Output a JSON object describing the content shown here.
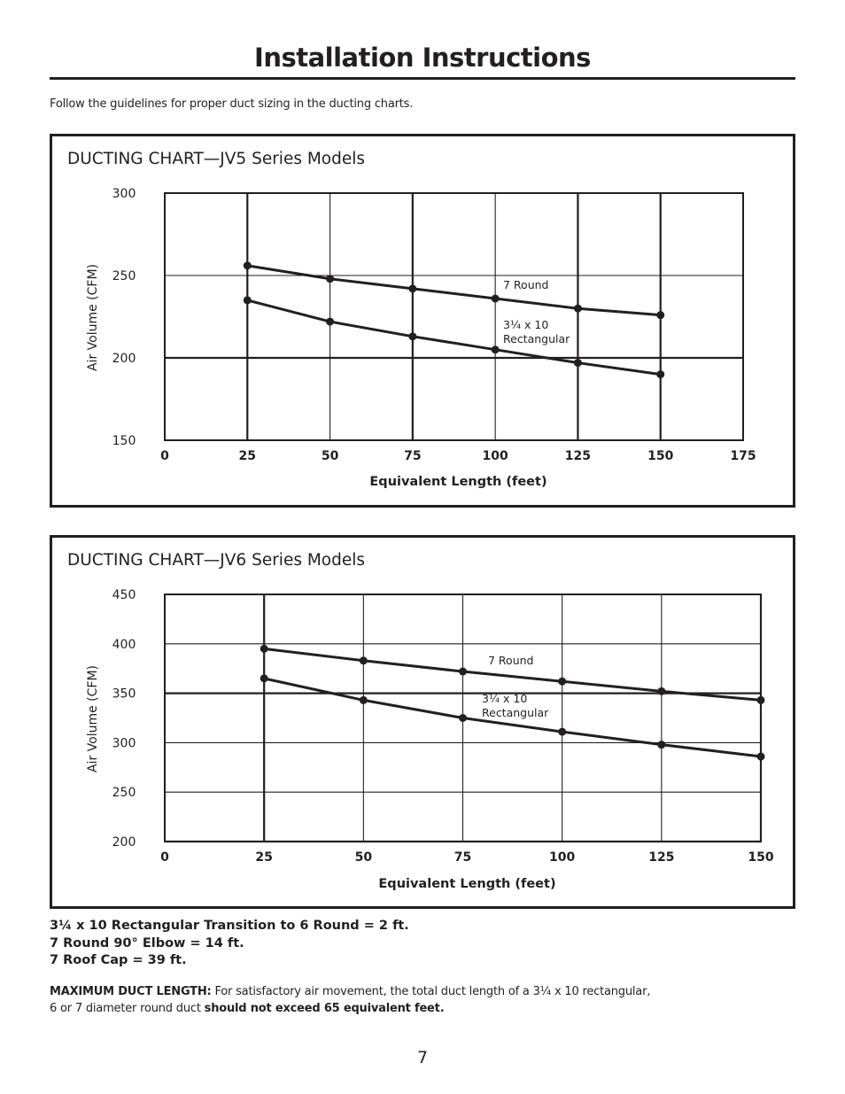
{
  "page": {
    "title": "Installation Instructions",
    "intro": "Follow the guidelines for proper duct sizing in the ducting charts.",
    "page_number": "7"
  },
  "chart_data": [
    {
      "type": "line",
      "title": "DUCTING CHART—JV5 Series Models",
      "xlabel": "Equivalent Length (feet)",
      "ylabel": "Air Volume (CFM)",
      "xlim": [
        0,
        175
      ],
      "ylim": [
        150,
        300
      ],
      "x_ticks": [
        0,
        25,
        50,
        75,
        100,
        125,
        150,
        175
      ],
      "y_ticks": [
        150,
        200,
        250,
        300
      ],
      "grid": true,
      "x": [
        25,
        50,
        75,
        100,
        125,
        150
      ],
      "series": [
        {
          "name": "7 Round",
          "label_lines": [
            "7   Round"
          ],
          "values": [
            256,
            248,
            242,
            236,
            230,
            226
          ]
        },
        {
          "name": "3¼ x 10 Rectangular",
          "label_lines": [
            "3¼   x 10",
            "Rectangular"
          ],
          "values": [
            235,
            222,
            213,
            205,
            197,
            190
          ]
        }
      ]
    },
    {
      "type": "line",
      "title": "DUCTING CHART—JV6 Series Models",
      "xlabel": "Equivalent Length (feet)",
      "ylabel": "Air Volume (CFM)",
      "xlim": [
        0,
        150
      ],
      "ylim": [
        200,
        450
      ],
      "x_ticks": [
        0,
        25,
        50,
        75,
        100,
        125,
        150
      ],
      "y_ticks": [
        200,
        250,
        300,
        350,
        400,
        450
      ],
      "grid": true,
      "x": [
        25,
        50,
        75,
        100,
        125,
        150
      ],
      "series": [
        {
          "name": "7 Round",
          "label_lines": [
            "7   Round"
          ],
          "values": [
            395,
            383,
            372,
            362,
            352,
            343
          ]
        },
        {
          "name": "3¼ x 10 Rectangular",
          "label_lines": [
            "3¼   x 10",
            "Rectangular"
          ],
          "values": [
            365,
            343,
            325,
            311,
            298,
            286
          ]
        }
      ]
    }
  ],
  "notes": [
    "3¼   x 10   Rectangular Transition to 6   Round = 2 ft.",
    "7   Round 90° Elbow = 14 ft.",
    "7   Roof Cap = 39 ft."
  ],
  "max_duct": {
    "label": "MAXIMUM DUCT LENGTH:",
    "text1": " For satisfactory air movement, the total duct length of a 3¼   x 10   rectangular,",
    "text2": "6   or 7   diameter round duct ",
    "text2_bold": "should not exceed 65 equivalent feet."
  }
}
